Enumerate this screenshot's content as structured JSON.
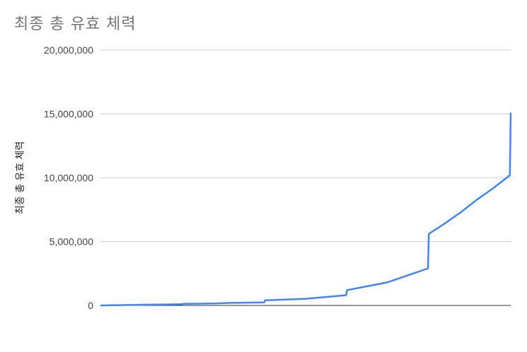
{
  "chart_data": {
    "type": "line",
    "title": "최종 총 유효 체력",
    "xlabel": "",
    "ylabel": "최종 총 유효 체력",
    "ylim": [
      0,
      20000000
    ],
    "yticks": [
      0,
      5000000,
      10000000,
      15000000,
      20000000
    ],
    "ytick_labels": [
      "0",
      "5,000,000",
      "10,000,000",
      "15,000,000",
      "20,000,000"
    ],
    "grid": true,
    "legend": "none",
    "series": [
      {
        "color": "#4285F4",
        "x": [
          0,
          20,
          40,
          60,
          80,
          100,
          101,
          120,
          140,
          160,
          200,
          201,
          250,
          300,
          301,
          350,
          400,
          401,
          420,
          440,
          460,
          480,
          500,
          501
        ],
        "values": [
          0,
          20000,
          40000,
          60000,
          80000,
          100000,
          120000,
          140000,
          160000,
          200000,
          230000,
          400000,
          520000,
          800000,
          1200000,
          1800000,
          2900000,
          5600000,
          6400000,
          7300000,
          8300000,
          9200000,
          10200000,
          15100000
        ]
      }
    ]
  }
}
